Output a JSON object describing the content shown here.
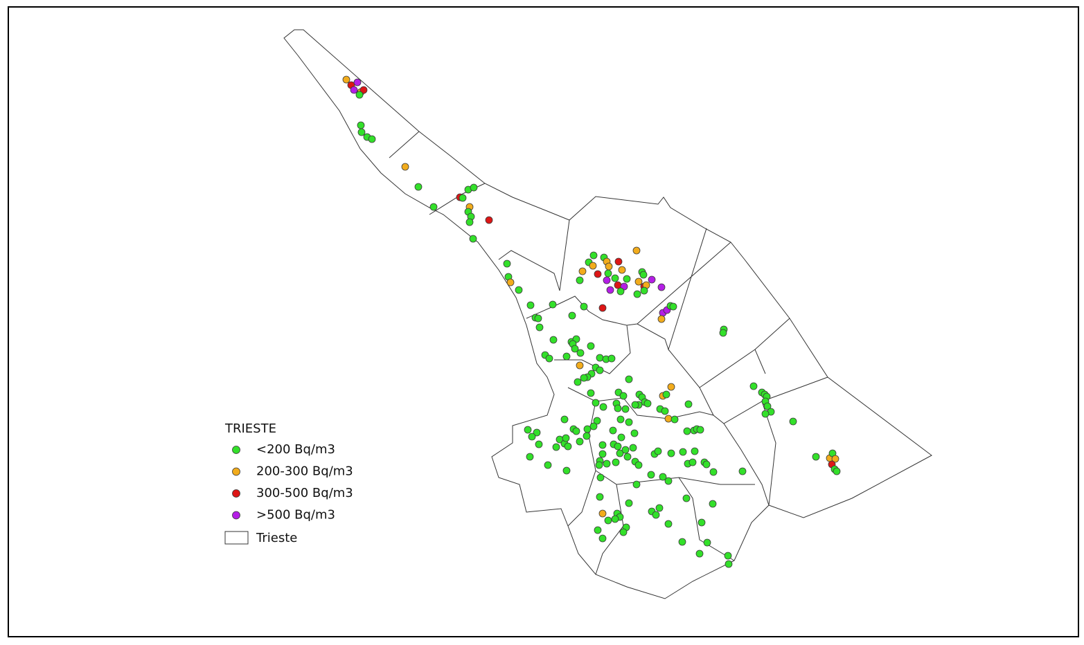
{
  "legend": {
    "title": "TRIESTE",
    "entries": [
      {
        "label": "<200 Bq/m3",
        "color": "#33e02a"
      },
      {
        "label": "200-300 Bq/m3",
        "color": "#f2ac1c"
      },
      {
        "label": "300-500 Bq/m3",
        "color": "#dd1616"
      },
      {
        "label": ">500 Bq/m3",
        "color": "#b41ee6"
      }
    ],
    "boundary": "Trieste"
  }
}
